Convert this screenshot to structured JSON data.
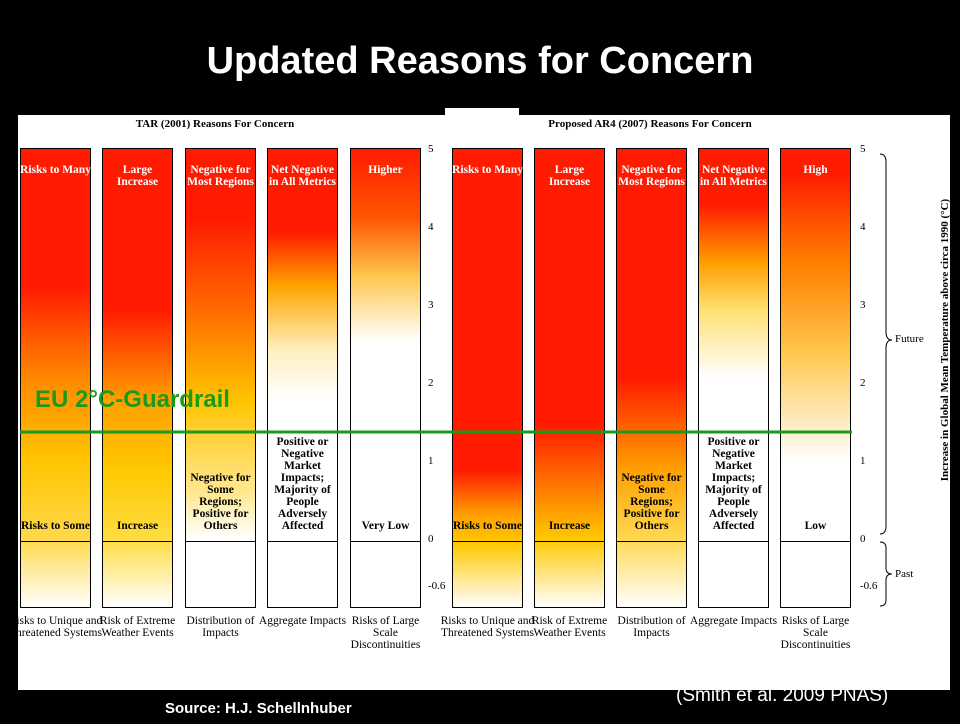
{
  "title": "Updated Reasons for Concern",
  "panels": [
    {
      "title": "TAR (2001) Reasons For Concern",
      "columns": [
        {
          "top": "Risks to Many",
          "bottom": "Risks to Some",
          "label": "Risks to Unique and Threatened Systems"
        },
        {
          "top": "Large Increase",
          "bottom": "Increase",
          "label": "Risk of Extreme Weather Events"
        },
        {
          "top": "Negative for Most Regions",
          "bottom": "Negative for Some Regions; Positive for Others",
          "label": "Distribution of Impacts"
        },
        {
          "top": "Net Negative in All Metrics",
          "bottom": "Positive or Negative Market Impacts; Majority of People Adversely Affected",
          "label": "Aggregate Impacts"
        },
        {
          "top": "Higher",
          "bottom": "Very Low",
          "label": "Risks of Large Scale Discontinuities"
        }
      ]
    },
    {
      "title": "Proposed AR4 (2007) Reasons For Concern",
      "columns": [
        {
          "top": "Risks to Many",
          "bottom": "Risks to Some",
          "label": "Risks to Unique and Threatened Systems"
        },
        {
          "top": "Large Increase",
          "bottom": "Increase",
          "label": "Risk of Extreme Weather Events"
        },
        {
          "top": "Negative for Most Regions",
          "bottom": "Negative for Some Regions; Positive for Others",
          "label": "Distribution of Impacts"
        },
        {
          "top": "Net Negative in All Metrics",
          "bottom": "Positive or Negative Market Impacts; Majority of People Adversely Affected",
          "label": "Aggregate Impacts"
        },
        {
          "top": "High",
          "bottom": "Low",
          "label": "Risks of Large Scale Discontinuities"
        }
      ]
    }
  ],
  "axis_ticks": [
    5,
    4,
    3,
    2,
    1,
    0,
    -0.6
  ],
  "axis_label": "Increase in Global Mean Temperature above circa 1990 (°C)",
  "future": "Future",
  "past": "Past",
  "guardrail": "EU 2°C-Guardrail",
  "source": "Source: H.J. Schellnhuber",
  "citation": "(Smith et al. 2009 PNAS)"
}
